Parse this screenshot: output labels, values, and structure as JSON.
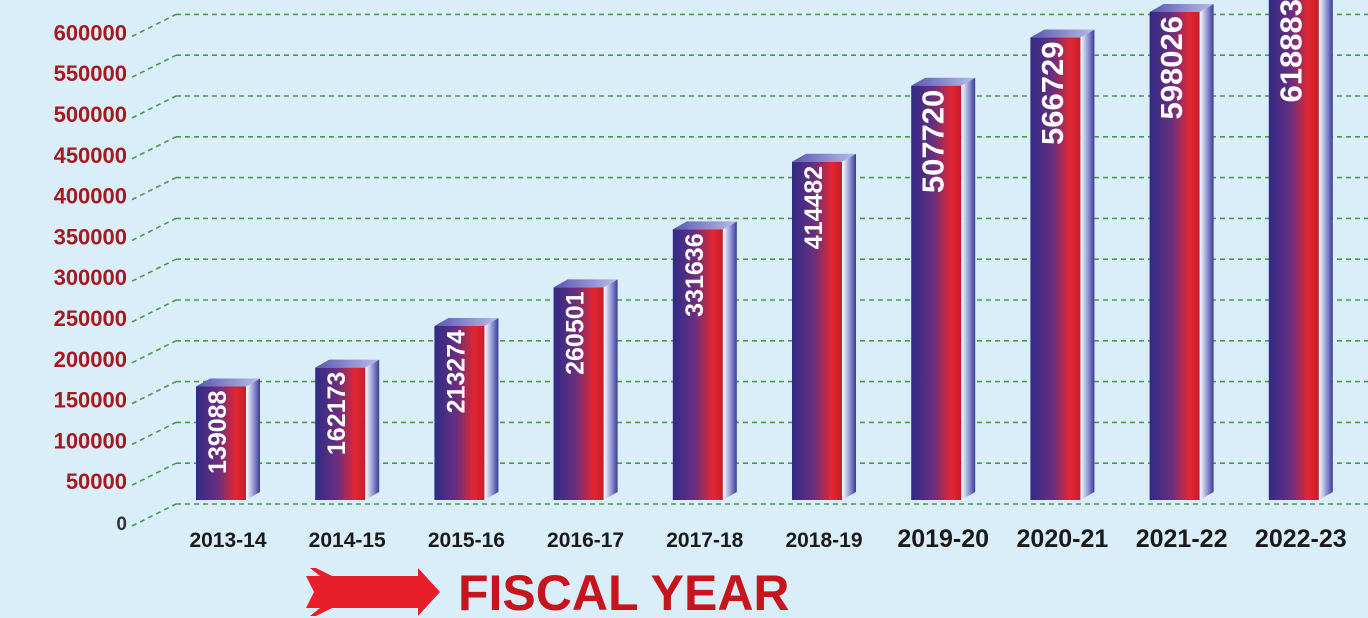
{
  "chart_data": {
    "type": "bar",
    "xlabel": "FISCAL YEAR",
    "ylabel": "",
    "ylim": [
      0,
      650000
    ],
    "grid": true,
    "yticks": [
      "0",
      "50000",
      "100000",
      "150000",
      "200000",
      "250000",
      "300000",
      "350000",
      "400000",
      "450000",
      "500000",
      "550000",
      "600000"
    ],
    "categories": [
      "2013-14",
      "2014-15",
      "2015-16",
      "2016-17",
      "2017-18",
      "2018-19",
      "2019-20",
      "2020-21",
      "2021-22",
      "2022-23"
    ],
    "values": [
      139088,
      162173,
      213274,
      260501,
      331636,
      414482,
      507720,
      566729,
      598026,
      618883
    ],
    "value_labels": [
      "139088",
      "162173",
      "213274",
      "260501",
      "331636",
      "414482",
      "507720",
      "566729",
      "598026",
      "618883"
    ],
    "colors": {
      "background": "#d9eef9",
      "bar_dark": "#2f2b86",
      "bar_red": "#e32630",
      "tick_text": "#a8181f",
      "grid": "#4a9a4a",
      "category_text": "#1a1a1a",
      "title_red": "#c8141c"
    },
    "arrow_icon": "right-arrow-icon"
  }
}
